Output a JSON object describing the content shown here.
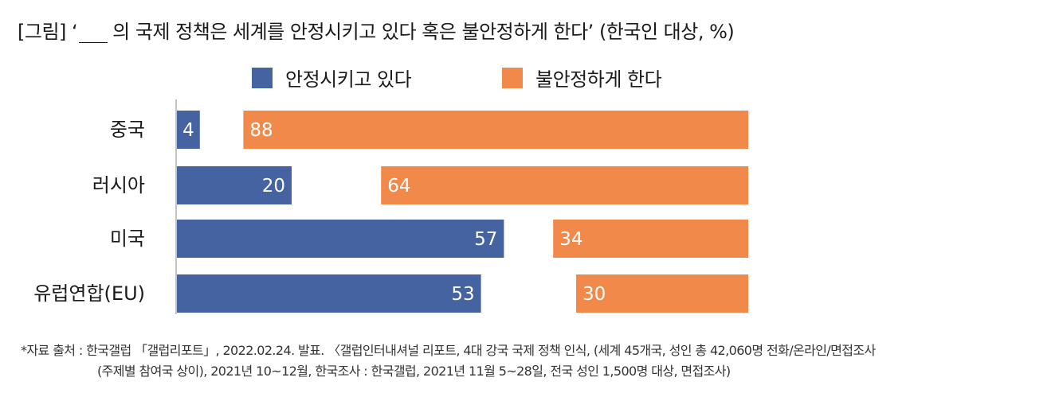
{
  "title_prefix": "[그림] ‘",
  "title_suffix": "의 국제 정책은 세계를 안정시키고 있다 혹은 불안정하게 한다’ (한국인 대상, %)",
  "footnote": {
    "line1": "*자료 출처 : 한국갤럽 「갤럽리포트」, 2022.02.24. 발표. 〈갤럽인터내셔널 리포트, 4대 강국 국제 정책 인식, (세계 45개국, 성인 총 42,060명 전화/온라인/면접조사",
    "line2": "(주제별 참여국 상이), 2021년 10~12월, 한국조사 : 한국갤럽, 2021년 11월 5~28일, 전국 성인 1,500명 대상, 면접조사)"
  },
  "colors": {
    "stabilizing": "#4463a0",
    "destabilizing": "#f0894a",
    "axis": "#b0b0b0"
  },
  "chart_data": {
    "type": "bar",
    "orientation": "horizontal",
    "categories": [
      "중국",
      "러시아",
      "미국",
      "유럽연합(EU)"
    ],
    "series": [
      {
        "name": "안정시키고 있다",
        "values": [
          4,
          20,
          57,
          53
        ]
      },
      {
        "name": "불안정하게 한다",
        "values": [
          88,
          64,
          34,
          30
        ]
      }
    ],
    "xlim": [
      0,
      100
    ],
    "legend": "top-center",
    "grid": false
  }
}
